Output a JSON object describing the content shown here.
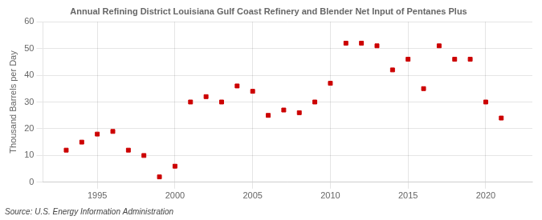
{
  "chart_data": {
    "type": "scatter",
    "title": "Annual Refining District Louisiana Gulf Coast Refinery and Blender Net Input of Pentanes Plus",
    "y_label": "Thousand Barrels per Day",
    "source": "Source: U.S. Energy Information Administration",
    "x": [
      1993,
      1994,
      1995,
      1996,
      1997,
      1998,
      1999,
      2000,
      2001,
      2002,
      2003,
      2004,
      2005,
      2006,
      2007,
      2008,
      2009,
      2010,
      2011,
      2012,
      2013,
      2014,
      2015,
      2016,
      2017,
      2018,
      2019,
      2020,
      2021
    ],
    "values": [
      12,
      15,
      18,
      19,
      12,
      10,
      2,
      6,
      30,
      32,
      30,
      36,
      34,
      25,
      27,
      26,
      30,
      37,
      52,
      52,
      51,
      42,
      46,
      35,
      51,
      46,
      46,
      30,
      24
    ],
    "color": "#cc0000",
    "marker": "square",
    "xlim": [
      1991.5,
      2023
    ],
    "xticks": [
      1995,
      2000,
      2005,
      2010,
      2015,
      2020
    ],
    "ylim": [
      0,
      60
    ],
    "yticks": [
      0,
      10,
      20,
      30,
      40,
      50,
      60
    ],
    "grid": true,
    "legend": false
  }
}
